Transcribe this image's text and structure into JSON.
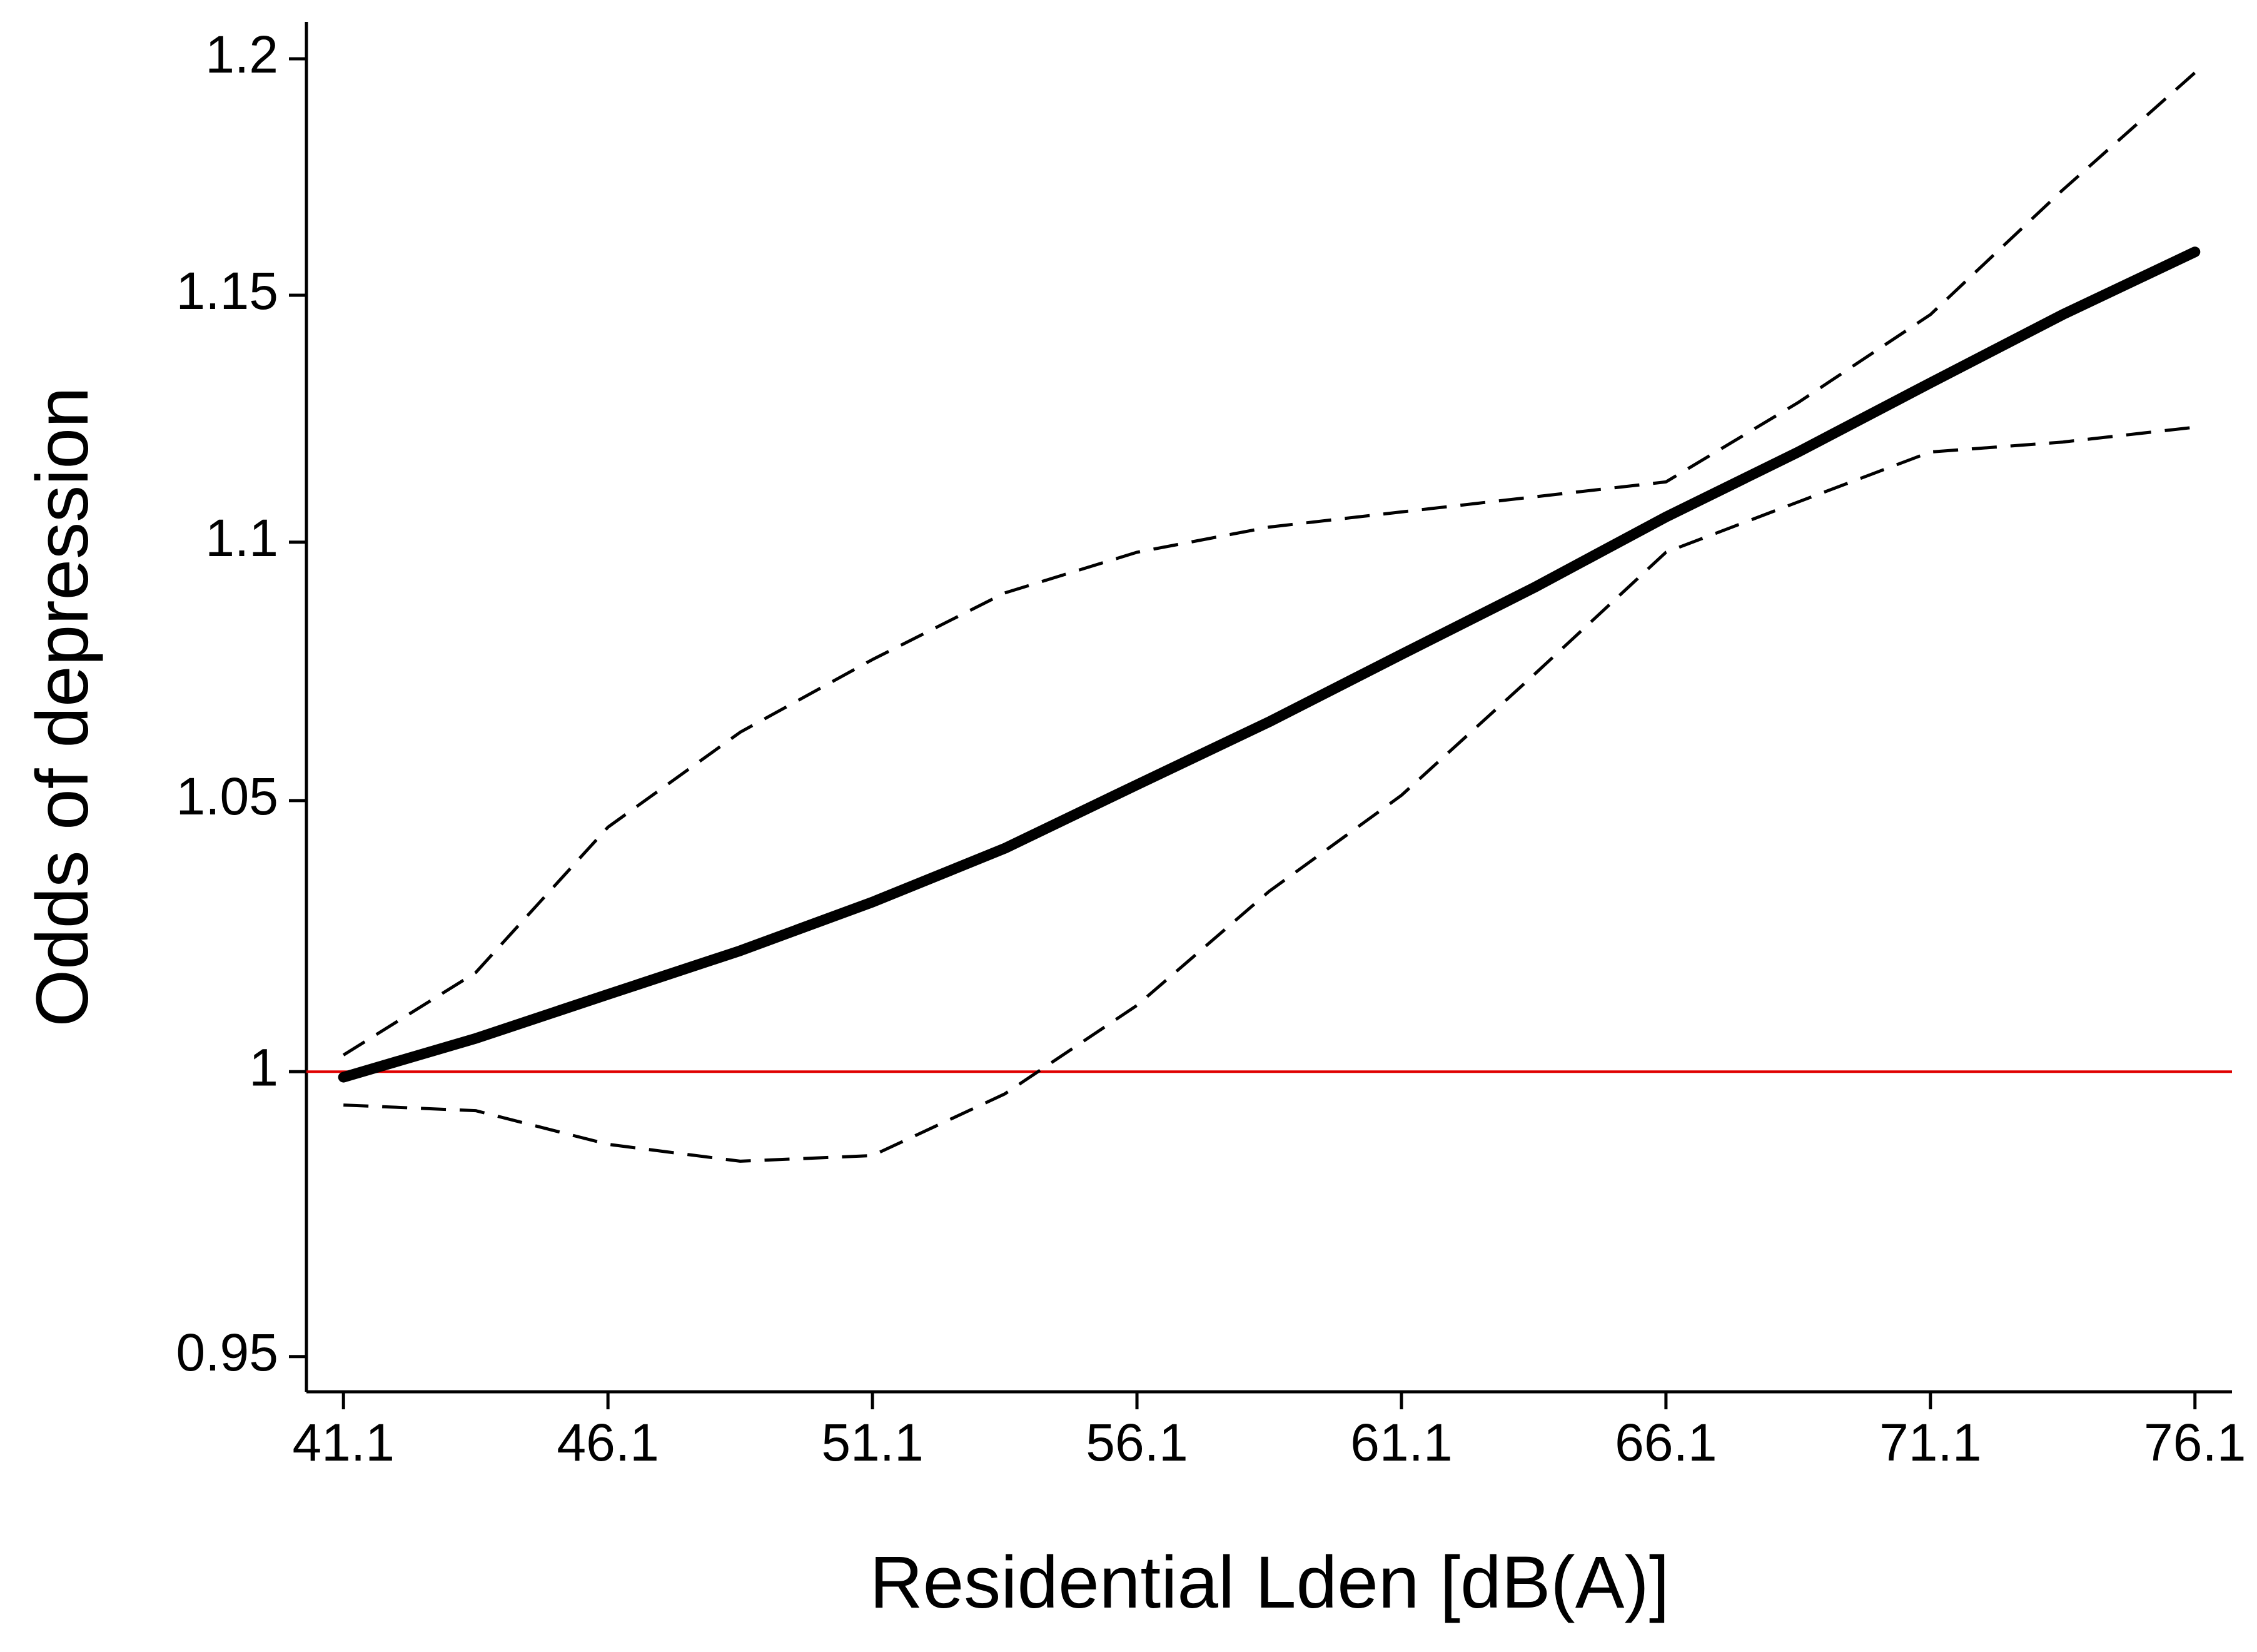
{
  "chart_data": {
    "type": "line",
    "x_label": "Residential Lden [dB(A)]",
    "y_label": "Odds of depression",
    "x": [
      41.1,
      43.6,
      46.1,
      48.6,
      51.1,
      53.6,
      56.1,
      58.6,
      61.1,
      63.6,
      66.1,
      68.6,
      71.1,
      73.6,
      76.1
    ],
    "series": [
      {
        "color": "#000000",
        "dashed": false,
        "values": [
          0.999,
          1.006,
          1.014,
          1.022,
          1.031,
          1.041,
          1.053,
          1.065,
          1.078,
          1.091,
          1.105,
          1.118,
          1.132,
          1.146,
          1.159
        ]
      },
      {
        "color": "#000000",
        "dashed": true,
        "values": [
          1.003,
          1.018,
          1.045,
          1.063,
          1.077,
          1.09,
          1.098,
          1.103,
          1.106,
          1.109,
          1.112,
          1.128,
          1.146,
          1.172,
          1.197
        ]
      },
      {
        "color": "#000000",
        "dashed": true,
        "values": [
          0.994,
          0.993,
          0.987,
          0.984,
          0.985,
          0.996,
          1.012,
          1.033,
          1.051,
          1.074,
          1.098,
          1.108,
          1.118,
          1.12,
          1.123
        ]
      }
    ],
    "reference_line": {
      "value": 1,
      "color": "#e00000"
    },
    "xlim": [
      40.4,
      76.8
    ],
    "xticks": [
      41.1,
      46.1,
      51.1,
      56.1,
      61.1,
      66.1,
      71.1,
      76.1
    ],
    "ylim": [
      0.944,
      1.208
    ],
    "yticks": [
      0.95,
      1,
      1.05,
      1.1,
      1.15,
      1.2
    ],
    "y_log": true,
    "grid": false
  }
}
